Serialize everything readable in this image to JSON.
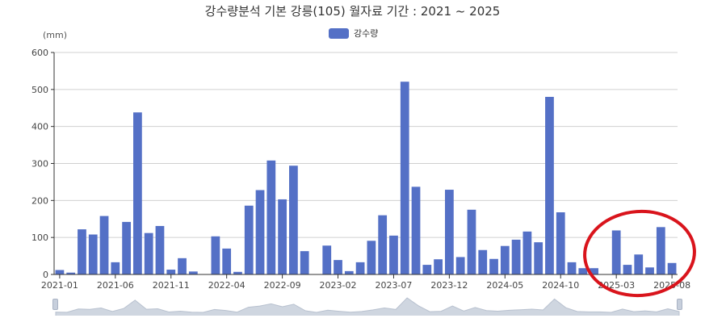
{
  "header": {
    "title": "강수량분석 기본 강릉(105) 월자료 기간 : 2021 ~ 2025",
    "unit": "(mm)"
  },
  "legend": {
    "label": "강수량",
    "color": "#5470c6"
  },
  "annotation": {
    "type": "ellipse",
    "color": "#d9141c",
    "note": "highlights 2025-01 to 2025-08"
  },
  "chart_data": {
    "type": "bar",
    "title": "강수량분석 기본 강릉(105) 월자료 기간 : 2021 ~ 2025",
    "xlabel": "",
    "ylabel": "(mm)",
    "ylim": [
      0,
      600
    ],
    "yticks": [
      0,
      100,
      200,
      300,
      400,
      500,
      600
    ],
    "grid": true,
    "legend_position": "top-center",
    "xtick_labels": [
      "2021-01",
      "2021-06",
      "2021-11",
      "2022-04",
      "2022-09",
      "2023-02",
      "2023-07",
      "2023-12",
      "2024-05",
      "2024-10",
      "2025-03",
      "2025-08"
    ],
    "categories": [
      "2021-01",
      "2021-02",
      "2021-03",
      "2021-04",
      "2021-05",
      "2021-06",
      "2021-07",
      "2021-08",
      "2021-09",
      "2021-10",
      "2021-11",
      "2021-12",
      "2022-01",
      "2022-02",
      "2022-03",
      "2022-04",
      "2022-05",
      "2022-06",
      "2022-07",
      "2022-08",
      "2022-09",
      "2022-10",
      "2022-11",
      "2022-12",
      "2023-01",
      "2023-02",
      "2023-03",
      "2023-04",
      "2023-05",
      "2023-06",
      "2023-07",
      "2023-08",
      "2023-09",
      "2023-10",
      "2023-11",
      "2023-12",
      "2024-01",
      "2024-02",
      "2024-03",
      "2024-04",
      "2024-05",
      "2024-06",
      "2024-07",
      "2024-08",
      "2024-09",
      "2024-10",
      "2024-11",
      "2024-12",
      "2025-01",
      "2025-02",
      "2025-03",
      "2025-04",
      "2025-05",
      "2025-06",
      "2025-07",
      "2025-08"
    ],
    "series": [
      {
        "name": "강수량",
        "values": [
          12,
          5,
          122,
          108,
          158,
          33,
          142,
          438,
          112,
          131,
          13,
          44,
          8,
          1,
          103,
          70,
          7,
          186,
          228,
          308,
          203,
          294,
          63,
          0,
          78,
          39,
          9,
          33,
          91,
          160,
          105,
          521,
          237,
          26,
          41,
          229,
          47,
          175,
          66,
          42,
          77,
          94,
          116,
          87,
          480,
          168,
          33,
          17,
          17,
          0,
          119,
          26,
          54,
          19,
          128,
          31
        ]
      }
    ]
  }
}
